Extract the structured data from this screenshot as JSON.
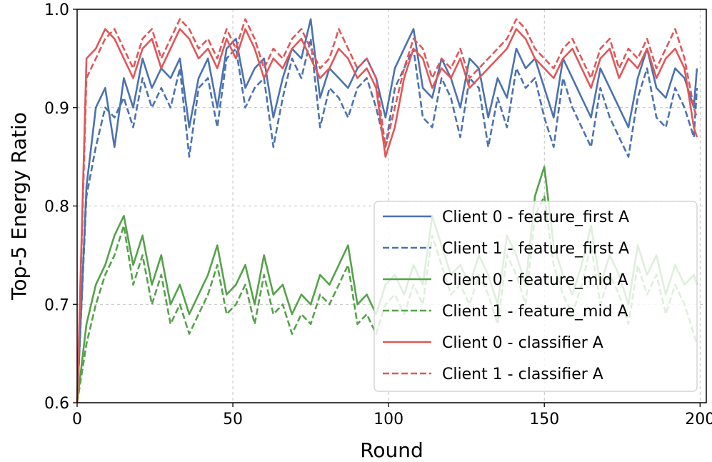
{
  "chart_data": {
    "type": "line",
    "title": "",
    "xlabel": "Round",
    "ylabel": "Top-5 Energy Ratio",
    "xlim": [
      0,
      202
    ],
    "ylim": [
      0.6,
      1.0
    ],
    "xticks": [
      "0",
      "50",
      "100",
      "150",
      "200"
    ],
    "xtick_values": [
      0,
      50,
      100,
      150,
      200
    ],
    "yticks": [
      "0.6",
      "0.7",
      "0.8",
      "0.9",
      "1.0"
    ],
    "ytick_values": [
      0.6,
      0.7,
      0.8,
      0.9,
      1.0
    ],
    "grid": true,
    "legend_position": "lower-right",
    "x": [
      0,
      3,
      6,
      9,
      12,
      15,
      18,
      21,
      24,
      27,
      30,
      33,
      36,
      39,
      42,
      45,
      48,
      51,
      54,
      57,
      60,
      63,
      66,
      69,
      72,
      75,
      78,
      81,
      84,
      87,
      90,
      93,
      96,
      99,
      102,
      105,
      108,
      111,
      114,
      117,
      120,
      123,
      126,
      129,
      132,
      135,
      138,
      141,
      144,
      147,
      150,
      153,
      156,
      159,
      162,
      165,
      168,
      171,
      174,
      177,
      180,
      183,
      186,
      189,
      192,
      195,
      198,
      199
    ],
    "series": [
      {
        "name": "Client 0 - feature_first A",
        "color": "#4c72b0",
        "dash": "solid",
        "values": [
          0.6,
          0.82,
          0.9,
          0.92,
          0.86,
          0.93,
          0.9,
          0.95,
          0.92,
          0.94,
          0.93,
          0.95,
          0.88,
          0.93,
          0.95,
          0.9,
          0.96,
          0.97,
          0.92,
          0.94,
          0.95,
          0.89,
          0.93,
          0.96,
          0.95,
          0.99,
          0.91,
          0.94,
          0.93,
          0.92,
          0.94,
          0.95,
          0.93,
          0.89,
          0.94,
          0.96,
          0.98,
          0.92,
          0.91,
          0.95,
          0.93,
          0.9,
          0.95,
          0.94,
          0.89,
          0.93,
          0.91,
          0.96,
          0.94,
          0.95,
          0.92,
          0.89,
          0.95,
          0.93,
          0.91,
          0.89,
          0.94,
          0.92,
          0.9,
          0.88,
          0.93,
          0.96,
          0.92,
          0.91,
          0.94,
          0.93,
          0.9,
          0.94
        ]
      },
      {
        "name": "Client 1 - feature_first A",
        "color": "#4c72b0",
        "dash": "dashed",
        "values": [
          0.6,
          0.81,
          0.86,
          0.9,
          0.89,
          0.91,
          0.88,
          0.93,
          0.9,
          0.92,
          0.9,
          0.94,
          0.85,
          0.92,
          0.93,
          0.88,
          0.95,
          0.96,
          0.9,
          0.92,
          0.93,
          0.86,
          0.91,
          0.95,
          0.93,
          0.97,
          0.88,
          0.92,
          0.91,
          0.89,
          0.92,
          0.93,
          0.9,
          0.86,
          0.92,
          0.94,
          0.96,
          0.89,
          0.88,
          0.93,
          0.91,
          0.87,
          0.93,
          0.92,
          0.86,
          0.91,
          0.88,
          0.94,
          0.92,
          0.93,
          0.89,
          0.86,
          0.93,
          0.9,
          0.88,
          0.86,
          0.92,
          0.89,
          0.87,
          0.85,
          0.91,
          0.94,
          0.89,
          0.88,
          0.92,
          0.9,
          0.87,
          0.92
        ]
      },
      {
        "name": "Client 0 - feature_mid A",
        "color": "#55a24a",
        "dash": "solid",
        "values": [
          0.6,
          0.68,
          0.72,
          0.74,
          0.77,
          0.79,
          0.74,
          0.77,
          0.72,
          0.75,
          0.7,
          0.72,
          0.69,
          0.71,
          0.73,
          0.76,
          0.71,
          0.72,
          0.74,
          0.7,
          0.75,
          0.71,
          0.72,
          0.69,
          0.71,
          0.7,
          0.73,
          0.72,
          0.74,
          0.76,
          0.7,
          0.71,
          0.69,
          0.72,
          0.73,
          0.71,
          0.74,
          0.72,
          0.79,
          0.76,
          0.73,
          0.74,
          0.72,
          0.75,
          0.73,
          0.7,
          0.77,
          0.75,
          0.72,
          0.81,
          0.84,
          0.76,
          0.73,
          0.71,
          0.74,
          0.78,
          0.72,
          0.75,
          0.73,
          0.7,
          0.76,
          0.73,
          0.75,
          0.71,
          0.74,
          0.72,
          0.73,
          0.72
        ]
      },
      {
        "name": "Client 1 - feature_mid A",
        "color": "#55a24a",
        "dash": "dashed",
        "values": [
          0.6,
          0.66,
          0.7,
          0.73,
          0.75,
          0.78,
          0.72,
          0.75,
          0.7,
          0.73,
          0.68,
          0.7,
          0.67,
          0.69,
          0.71,
          0.74,
          0.69,
          0.7,
          0.72,
          0.68,
          0.73,
          0.69,
          0.7,
          0.67,
          0.69,
          0.68,
          0.71,
          0.7,
          0.72,
          0.74,
          0.68,
          0.69,
          0.67,
          0.7,
          0.71,
          0.69,
          0.72,
          0.7,
          0.77,
          0.74,
          0.71,
          0.72,
          0.7,
          0.73,
          0.71,
          0.68,
          0.75,
          0.73,
          0.7,
          0.79,
          0.81,
          0.74,
          0.71,
          0.69,
          0.72,
          0.76,
          0.7,
          0.73,
          0.71,
          0.68,
          0.74,
          0.71,
          0.73,
          0.69,
          0.72,
          0.7,
          0.67,
          0.66
        ]
      },
      {
        "name": "Client 0 - classifier A",
        "color": "#e15759",
        "dash": "solid",
        "values": [
          0.6,
          0.95,
          0.96,
          0.98,
          0.97,
          0.95,
          0.93,
          0.96,
          0.97,
          0.94,
          0.96,
          0.98,
          0.97,
          0.95,
          0.96,
          0.94,
          0.97,
          0.95,
          0.98,
          0.96,
          0.93,
          0.95,
          0.94,
          0.96,
          0.97,
          0.95,
          0.93,
          0.94,
          0.96,
          0.95,
          0.93,
          0.94,
          0.92,
          0.85,
          0.88,
          0.93,
          0.96,
          0.95,
          0.92,
          0.94,
          0.93,
          0.95,
          0.92,
          0.93,
          0.94,
          0.95,
          0.96,
          0.98,
          0.97,
          0.95,
          0.94,
          0.93,
          0.95,
          0.96,
          0.94,
          0.92,
          0.95,
          0.96,
          0.93,
          0.95,
          0.94,
          0.96,
          0.93,
          0.95,
          0.96,
          0.94,
          0.88,
          0.87
        ]
      },
      {
        "name": "Client 1 - classifier A",
        "color": "#e15759",
        "dash": "dashed",
        "values": [
          0.6,
          0.93,
          0.95,
          0.97,
          0.98,
          0.96,
          0.94,
          0.97,
          0.98,
          0.95,
          0.97,
          0.99,
          0.98,
          0.96,
          0.97,
          0.95,
          0.98,
          0.96,
          0.99,
          0.97,
          0.94,
          0.96,
          0.95,
          0.97,
          0.98,
          0.96,
          0.94,
          0.95,
          0.98,
          0.96,
          0.94,
          0.95,
          0.93,
          0.86,
          0.9,
          0.94,
          0.97,
          0.96,
          0.93,
          0.95,
          0.94,
          0.96,
          0.93,
          0.94,
          0.95,
          0.96,
          0.97,
          0.99,
          0.98,
          0.96,
          0.95,
          0.94,
          0.96,
          0.97,
          0.95,
          0.93,
          0.96,
          0.97,
          0.94,
          0.96,
          0.95,
          0.97,
          0.94,
          0.96,
          0.98,
          0.95,
          0.9,
          0.89
        ]
      }
    ]
  }
}
